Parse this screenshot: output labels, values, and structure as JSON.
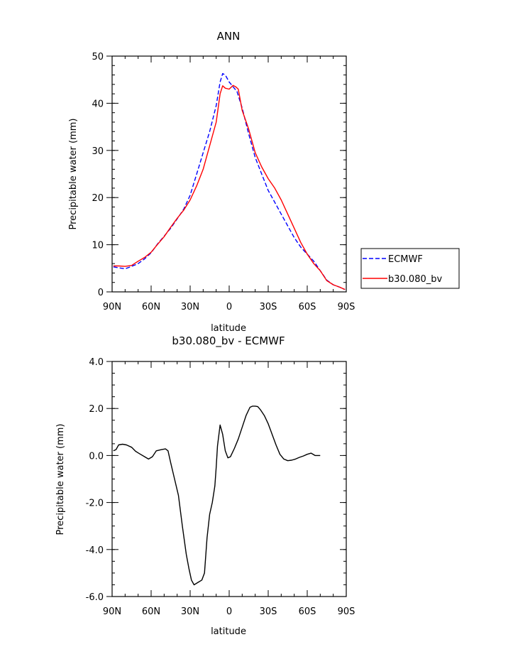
{
  "chart_data": [
    {
      "type": "line",
      "title": "ANN",
      "xlabel": "latitude",
      "ylabel": "Precipitable water (mm)",
      "xlim": [
        -90,
        90
      ],
      "ylim": [
        0,
        50
      ],
      "x_ticks": [
        -90,
        -60,
        -30,
        0,
        30,
        60,
        90
      ],
      "x_tick_labels": [
        "90N",
        "60N",
        "30N",
        "0",
        "30S",
        "60S",
        "90S"
      ],
      "y_ticks": [
        0,
        10,
        20,
        30,
        40,
        50
      ],
      "y_tick_labels": [
        "0",
        "10",
        "20",
        "30",
        "40",
        "50"
      ],
      "legend_position": "right",
      "series": [
        {
          "name": "ECMWF",
          "color": "#0000ff",
          "dash": "dashed",
          "points": [
            [
              -89,
              5.3
            ],
            [
              -85,
              5.1
            ],
            [
              -80,
              4.9
            ],
            [
              -75,
              5.4
            ],
            [
              -70,
              6.0
            ],
            [
              -65,
              7.0
            ],
            [
              -60,
              8.3
            ],
            [
              -55,
              10.2
            ],
            [
              -50,
              11.8
            ],
            [
              -45,
              13.5
            ],
            [
              -40,
              15.5
            ],
            [
              -35,
              17.5
            ],
            [
              -30,
              20.5
            ],
            [
              -25,
              25.0
            ],
            [
              -20,
              29.5
            ],
            [
              -15,
              34.0
            ],
            [
              -10,
              39.5
            ],
            [
              -7,
              44.5
            ],
            [
              -5,
              46.3
            ],
            [
              -3,
              46.0
            ],
            [
              0,
              44.5
            ],
            [
              3,
              43.5
            ],
            [
              6,
              42.5
            ],
            [
              10,
              39.0
            ],
            [
              15,
              33.5
            ],
            [
              20,
              28.5
            ],
            [
              25,
              25.0
            ],
            [
              30,
              21.5
            ],
            [
              35,
              19.0
            ],
            [
              40,
              16.5
            ],
            [
              45,
              14.0
            ],
            [
              50,
              11.5
            ],
            [
              55,
              9.5
            ],
            [
              60,
              8.0
            ],
            [
              65,
              6.5
            ],
            [
              70,
              4.5
            ],
            [
              75,
              2.5
            ],
            [
              80,
              1.5
            ],
            [
              85,
              1.0
            ],
            [
              89,
              0.5
            ]
          ]
        },
        {
          "name": "b30.080_bv",
          "color": "#ff0000",
          "dash": "solid",
          "points": [
            [
              -89,
              5.5
            ],
            [
              -85,
              5.5
            ],
            [
              -80,
              5.4
            ],
            [
              -75,
              5.6
            ],
            [
              -70,
              6.5
            ],
            [
              -65,
              7.3
            ],
            [
              -60,
              8.4
            ],
            [
              -55,
              10.1
            ],
            [
              -50,
              11.7
            ],
            [
              -45,
              13.7
            ],
            [
              -40,
              15.6
            ],
            [
              -35,
              17.3
            ],
            [
              -30,
              19.5
            ],
            [
              -25,
              22.5
            ],
            [
              -20,
              26.0
            ],
            [
              -15,
              31.0
            ],
            [
              -10,
              36.0
            ],
            [
              -7,
              42.0
            ],
            [
              -5,
              43.7
            ],
            [
              -3,
              43.2
            ],
            [
              0,
              43.0
            ],
            [
              3,
              43.8
            ],
            [
              5,
              43.5
            ],
            [
              7,
              43.0
            ],
            [
              10,
              38.5
            ],
            [
              15,
              34.5
            ],
            [
              20,
              29.5
            ],
            [
              25,
              26.5
            ],
            [
              30,
              24.0
            ],
            [
              35,
              22.0
            ],
            [
              40,
              19.5
            ],
            [
              45,
              16.5
            ],
            [
              50,
              13.5
            ],
            [
              55,
              10.5
            ],
            [
              60,
              8.0
            ],
            [
              65,
              6.0
            ],
            [
              70,
              4.5
            ],
            [
              75,
              2.4
            ],
            [
              80,
              1.5
            ],
            [
              85,
              1.0
            ],
            [
              89,
              0.5
            ]
          ]
        }
      ]
    },
    {
      "type": "line",
      "title": "b30.080_bv - ECMWF",
      "xlabel": "latitude",
      "ylabel": "Precipitable water (mm)",
      "xlim": [
        -90,
        90
      ],
      "ylim": [
        -6.0,
        4.0
      ],
      "x_ticks": [
        -90,
        -60,
        -30,
        0,
        30,
        60,
        90
      ],
      "x_tick_labels": [
        "90N",
        "60N",
        "30N",
        "0",
        "30S",
        "60S",
        "90S"
      ],
      "y_ticks": [
        -6,
        -4,
        -2,
        0,
        2,
        4
      ],
      "y_tick_labels": [
        "-6.0",
        "-4.0",
        "-2.0",
        "0.0",
        "2.0",
        "4.0"
      ],
      "series": [
        {
          "color": "#000000",
          "dash": "solid",
          "points": [
            [
              -89,
              0.2
            ],
            [
              -87,
              0.25
            ],
            [
              -85,
              0.45
            ],
            [
              -82,
              0.48
            ],
            [
              -79,
              0.45
            ],
            [
              -75,
              0.35
            ],
            [
              -72,
              0.18
            ],
            [
              -69,
              0.08
            ],
            [
              -65,
              -0.05
            ],
            [
              -62,
              -0.15
            ],
            [
              -59,
              -0.05
            ],
            [
              -56,
              0.2
            ],
            [
              -52,
              0.25
            ],
            [
              -49,
              0.28
            ],
            [
              -47,
              0.2
            ],
            [
              -45,
              -0.3
            ],
            [
              -42,
              -1.0
            ],
            [
              -39,
              -1.7
            ],
            [
              -36,
              -3.0
            ],
            [
              -33,
              -4.2
            ],
            [
              -31,
              -4.8
            ],
            [
              -29,
              -5.3
            ],
            [
              -27,
              -5.5
            ],
            [
              -24,
              -5.4
            ],
            [
              -21,
              -5.3
            ],
            [
              -19,
              -5.0
            ],
            [
              -17,
              -3.5
            ],
            [
              -15,
              -2.5
            ],
            [
              -13,
              -2.0
            ],
            [
              -11,
              -1.3
            ],
            [
              -10,
              -0.5
            ],
            [
              -9,
              0.4
            ],
            [
              -7,
              1.3
            ],
            [
              -5,
              0.9
            ],
            [
              -3,
              0.2
            ],
            [
              -1,
              -0.1
            ],
            [
              1,
              -0.05
            ],
            [
              4,
              0.3
            ],
            [
              7,
              0.7
            ],
            [
              10,
              1.2
            ],
            [
              13,
              1.7
            ],
            [
              16,
              2.05
            ],
            [
              18,
              2.1
            ],
            [
              20,
              2.1
            ],
            [
              22,
              2.08
            ],
            [
              24,
              1.95
            ],
            [
              27,
              1.7
            ],
            [
              30,
              1.35
            ],
            [
              33,
              0.9
            ],
            [
              36,
              0.45
            ],
            [
              39,
              0.05
            ],
            [
              42,
              -0.15
            ],
            [
              45,
              -0.22
            ],
            [
              48,
              -0.2
            ],
            [
              51,
              -0.15
            ],
            [
              54,
              -0.08
            ],
            [
              57,
              -0.02
            ],
            [
              60,
              0.05
            ],
            [
              63,
              0.1
            ],
            [
              66,
              0.0
            ],
            [
              70,
              0.0
            ]
          ]
        }
      ]
    }
  ]
}
